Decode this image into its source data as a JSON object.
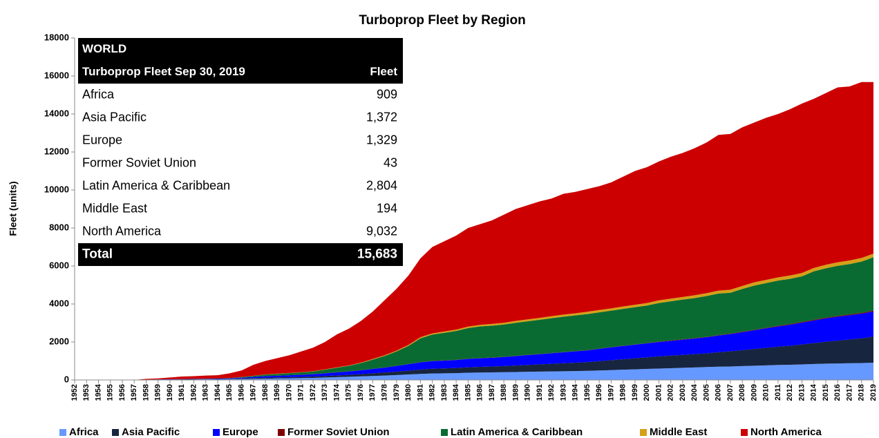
{
  "chart_data": {
    "type": "stacked-area",
    "title": "Turboprop Fleet by Region",
    "y_label": "Fleet (units)",
    "x": [
      1952,
      1953,
      1954,
      1955,
      1956,
      1957,
      1958,
      1959,
      1960,
      1961,
      1962,
      1963,
      1964,
      1965,
      1966,
      1967,
      1968,
      1969,
      1970,
      1971,
      1972,
      1973,
      1974,
      1975,
      1976,
      1977,
      1978,
      1979,
      1980,
      1981,
      1982,
      1983,
      1984,
      1985,
      1986,
      1987,
      1988,
      1989,
      1990,
      1991,
      1992,
      1993,
      1994,
      1995,
      1996,
      1997,
      1998,
      1999,
      2000,
      2001,
      2002,
      2003,
      2004,
      2005,
      2006,
      2007,
      2008,
      2009,
      2010,
      2011,
      2012,
      2013,
      2014,
      2015,
      2016,
      2017,
      2018,
      2019
    ],
    "xlim": [
      1952,
      2019
    ],
    "ylim": [
      0,
      18000
    ],
    "yticks": [
      0,
      2000,
      4000,
      6000,
      8000,
      10000,
      12000,
      14000,
      16000,
      18000
    ],
    "legend": "bottom",
    "series": [
      {
        "name": "Africa",
        "color": "#6699ff",
        "values": [
          0,
          0,
          0,
          0,
          0,
          0,
          5,
          10,
          15,
          20,
          25,
          30,
          35,
          40,
          50,
          60,
          70,
          80,
          90,
          100,
          110,
          130,
          150,
          170,
          190,
          210,
          230,
          260,
          290,
          320,
          340,
          350,
          360,
          380,
          390,
          400,
          410,
          420,
          430,
          440,
          450,
          460,
          470,
          480,
          500,
          520,
          540,
          560,
          580,
          600,
          620,
          640,
          660,
          680,
          700,
          710,
          730,
          750,
          770,
          790,
          800,
          820,
          840,
          860,
          870,
          880,
          890,
          909
        ]
      },
      {
        "name": "Asia Pacific",
        "color": "#17253f",
        "values": [
          0,
          0,
          0,
          0,
          0,
          0,
          5,
          8,
          10,
          12,
          14,
          16,
          18,
          20,
          30,
          40,
          50,
          55,
          60,
          65,
          70,
          80,
          90,
          100,
          120,
          140,
          160,
          180,
          200,
          230,
          250,
          260,
          270,
          290,
          300,
          310,
          320,
          340,
          360,
          380,
          400,
          420,
          440,
          460,
          490,
          520,
          550,
          580,
          610,
          640,
          660,
          680,
          700,
          720,
          760,
          800,
          840,
          880,
          920,
          960,
          1000,
          1050,
          1100,
          1150,
          1200,
          1250,
          1300,
          1372
        ]
      },
      {
        "name": "Europe",
        "color": "#0000ff",
        "values": [
          0,
          0,
          0,
          0,
          0,
          0,
          5,
          8,
          10,
          12,
          14,
          16,
          18,
          25,
          40,
          60,
          80,
          90,
          100,
          110,
          120,
          140,
          160,
          180,
          200,
          230,
          260,
          300,
          340,
          380,
          400,
          410,
          420,
          440,
          450,
          460,
          480,
          500,
          520,
          540,
          560,
          580,
          600,
          620,
          650,
          680,
          700,
          720,
          740,
          760,
          780,
          800,
          820,
          850,
          880,
          910,
          950,
          990,
          1030,
          1070,
          1110,
          1150,
          1190,
          1230,
          1260,
          1280,
          1300,
          1329
        ]
      },
      {
        "name": "Former Soviet Union",
        "color": "#7f0000",
        "values": [
          0,
          0,
          0,
          0,
          0,
          0,
          0,
          0,
          0,
          0,
          0,
          0,
          0,
          0,
          0,
          0,
          0,
          0,
          0,
          5,
          5,
          5,
          5,
          5,
          5,
          5,
          5,
          5,
          5,
          10,
          10,
          10,
          10,
          10,
          10,
          10,
          10,
          10,
          10,
          10,
          10,
          10,
          10,
          10,
          10,
          10,
          10,
          10,
          10,
          20,
          20,
          20,
          20,
          20,
          20,
          20,
          20,
          20,
          20,
          30,
          32,
          34,
          36,
          38,
          40,
          41,
          42,
          43
        ]
      },
      {
        "name": "Latin America & Caribbean",
        "color": "#0a6b32",
        "values": [
          0,
          0,
          0,
          0,
          0,
          0,
          5,
          4,
          5,
          6,
          7,
          8,
          9,
          15,
          30,
          60,
          80,
          95,
          110,
          120,
          140,
          190,
          240,
          290,
          370,
          490,
          610,
          760,
          960,
          1250,
          1390,
          1450,
          1520,
          1610,
          1670,
          1680,
          1700,
          1740,
          1770,
          1800,
          1830,
          1860,
          1880,
          1900,
          1910,
          1920,
          1940,
          1960,
          1980,
          2030,
          2060,
          2090,
          2110,
          2150,
          2190,
          2150,
          2250,
          2330,
          2360,
          2380,
          2380,
          2400,
          2550,
          2600,
          2640,
          2650,
          2700,
          2804
        ]
      },
      {
        "name": "Middle East",
        "color": "#d4a017",
        "values": [
          0,
          0,
          0,
          0,
          0,
          0,
          0,
          0,
          0,
          0,
          0,
          0,
          0,
          0,
          5,
          5,
          10,
          10,
          10,
          10,
          15,
          15,
          20,
          20,
          25,
          30,
          35,
          40,
          50,
          60,
          60,
          70,
          70,
          80,
          80,
          90,
          90,
          100,
          100,
          100,
          110,
          110,
          110,
          120,
          120,
          120,
          130,
          130,
          130,
          140,
          140,
          140,
          150,
          150,
          150,
          160,
          160,
          170,
          170,
          170,
          180,
          180,
          180,
          185,
          185,
          190,
          190,
          194
        ]
      },
      {
        "name": "North America",
        "color": "#cc0000",
        "values": [
          0,
          0,
          0,
          0,
          0,
          0,
          40,
          50,
          90,
          130,
          140,
          160,
          170,
          250,
          345,
          575,
          710,
          820,
          930,
          1090,
          1240,
          1440,
          1735,
          1935,
          2190,
          2495,
          2900,
          3255,
          3655,
          4150,
          4550,
          4750,
          4950,
          5190,
          5300,
          5450,
          5690,
          5890,
          6010,
          6130,
          6190,
          6360,
          6390,
          6460,
          6520,
          6630,
          6830,
          7040,
          7150,
          7310,
          7470,
          7580,
          7740,
          7930,
          8200,
          8200,
          8350,
          8410,
          8530,
          8600,
          8748,
          8916,
          8904,
          9037,
          9205,
          9159,
          9258,
          9032
        ]
      }
    ],
    "table": {
      "title": "WORLD",
      "header": [
        "Turboprop Fleet Sep 30, 2019",
        "Fleet"
      ],
      "rows": [
        [
          "Africa",
          "909"
        ],
        [
          "Asia Pacific",
          "1,372"
        ],
        [
          "Europe",
          "1,329"
        ],
        [
          "Former Soviet Union",
          "43"
        ],
        [
          "Latin America & Caribbean",
          "2,804"
        ],
        [
          "Middle East",
          "194"
        ],
        [
          "North America",
          "9,032"
        ]
      ],
      "total": [
        "Total",
        "15,683"
      ]
    }
  }
}
